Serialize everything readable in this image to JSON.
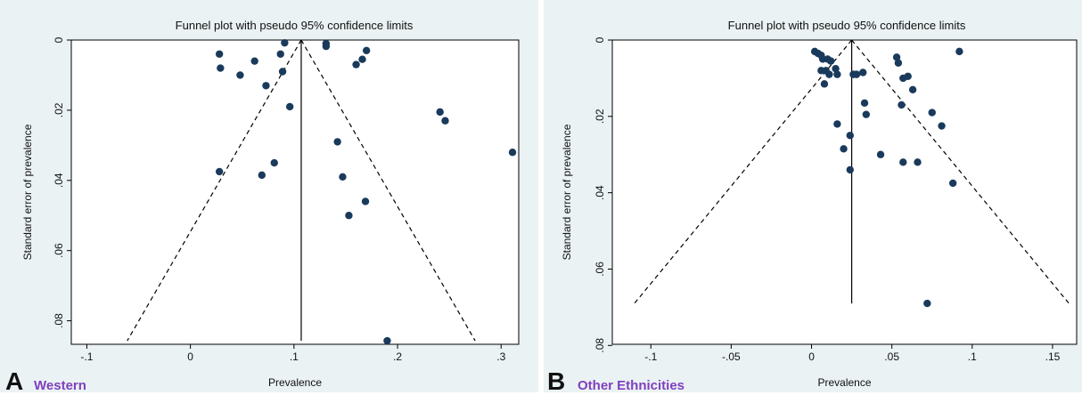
{
  "colors": {
    "outer_bg": "#eaf2f3",
    "plot_bg": "#ffffff",
    "point": "#1a3a5c",
    "line": "#000000",
    "subtitle": "#7f3fbf"
  },
  "chart_data": [
    {
      "type": "scatter",
      "panel_letter": "A",
      "subtitle": "Western",
      "title": "Funnel plot with pseudo 95% confidence limits",
      "xlabel": "Prevalence",
      "ylabel": "Standard error of prevalence",
      "xlim": [
        -0.115,
        0.317
      ],
      "ylim": [
        0,
        0.0867
      ],
      "y_reversed": true,
      "xticks": [
        -0.1,
        0,
        0.1,
        0.2,
        0.3
      ],
      "xtick_labels": [
        "-.1",
        "0",
        ".1",
        ".2",
        ".3"
      ],
      "yticks": [
        0,
        0.02,
        0.04,
        0.06,
        0.08
      ],
      "ytick_labels": [
        "0",
        ".02",
        ".04",
        ".06",
        ".08"
      ],
      "pooled_estimate": 0.107,
      "funnel_se_max": 0.0857,
      "points": [
        {
          "x": 0.028,
          "y": 0.004
        },
        {
          "x": 0.029,
          "y": 0.008
        },
        {
          "x": 0.048,
          "y": 0.01
        },
        {
          "x": 0.062,
          "y": 0.006
        },
        {
          "x": 0.073,
          "y": 0.013
        },
        {
          "x": 0.087,
          "y": 0.004
        },
        {
          "x": 0.091,
          "y": 0.0008
        },
        {
          "x": 0.089,
          "y": 0.009
        },
        {
          "x": 0.096,
          "y": 0.019
        },
        {
          "x": 0.131,
          "y": 0.001
        },
        {
          "x": 0.131,
          "y": 0.0018
        },
        {
          "x": 0.17,
          "y": 0.003
        },
        {
          "x": 0.166,
          "y": 0.0055
        },
        {
          "x": 0.16,
          "y": 0.007
        },
        {
          "x": 0.241,
          "y": 0.0205
        },
        {
          "x": 0.246,
          "y": 0.023
        },
        {
          "x": 0.311,
          "y": 0.032
        },
        {
          "x": 0.142,
          "y": 0.029
        },
        {
          "x": 0.147,
          "y": 0.039
        },
        {
          "x": 0.169,
          "y": 0.046
        },
        {
          "x": 0.153,
          "y": 0.05
        },
        {
          "x": 0.081,
          "y": 0.035
        },
        {
          "x": 0.069,
          "y": 0.0385
        },
        {
          "x": 0.028,
          "y": 0.0375
        },
        {
          "x": 0.19,
          "y": 0.0857
        }
      ]
    },
    {
      "type": "scatter",
      "panel_letter": "B",
      "subtitle": "Other Ethnicities",
      "title": "Funnel plot with pseudo 95% confidence limits",
      "xlabel": "Prevalence",
      "ylabel": "Standard error of prevalence",
      "xlim": [
        -0.124,
        0.165
      ],
      "ylim": [
        0,
        0.0797
      ],
      "y_reversed": true,
      "xticks": [
        -0.1,
        -0.05,
        0,
        0.05,
        0.1,
        0.15
      ],
      "xtick_labels": [
        "-.1",
        "-.05",
        "0",
        ".05",
        ".1",
        ".15"
      ],
      "yticks": [
        0,
        0.02,
        0.04,
        0.06,
        0.08
      ],
      "ytick_labels": [
        "0",
        ".02",
        ".04",
        ".06",
        ".08"
      ],
      "pooled_estimate": 0.025,
      "funnel_se_max": 0.069,
      "points": [
        {
          "x": 0.002,
          "y": 0.003
        },
        {
          "x": 0.004,
          "y": 0.0035
        },
        {
          "x": 0.006,
          "y": 0.004
        },
        {
          "x": 0.007,
          "y": 0.005
        },
        {
          "x": 0.01,
          "y": 0.005
        },
        {
          "x": 0.012,
          "y": 0.0055
        },
        {
          "x": 0.015,
          "y": 0.0075
        },
        {
          "x": 0.006,
          "y": 0.008
        },
        {
          "x": 0.009,
          "y": 0.008
        },
        {
          "x": 0.011,
          "y": 0.009
        },
        {
          "x": 0.016,
          "y": 0.009
        },
        {
          "x": 0.008,
          "y": 0.0115
        },
        {
          "x": 0.026,
          "y": 0.009
        },
        {
          "x": 0.028,
          "y": 0.009
        },
        {
          "x": 0.032,
          "y": 0.0085
        },
        {
          "x": 0.053,
          "y": 0.0045
        },
        {
          "x": 0.054,
          "y": 0.006
        },
        {
          "x": 0.057,
          "y": 0.01
        },
        {
          "x": 0.06,
          "y": 0.0095
        },
        {
          "x": 0.063,
          "y": 0.013
        },
        {
          "x": 0.092,
          "y": 0.003
        },
        {
          "x": 0.033,
          "y": 0.0165
        },
        {
          "x": 0.056,
          "y": 0.017
        },
        {
          "x": 0.034,
          "y": 0.0195
        },
        {
          "x": 0.075,
          "y": 0.019
        },
        {
          "x": 0.081,
          "y": 0.0225
        },
        {
          "x": 0.016,
          "y": 0.022
        },
        {
          "x": 0.024,
          "y": 0.025
        },
        {
          "x": 0.02,
          "y": 0.0285
        },
        {
          "x": 0.043,
          "y": 0.03
        },
        {
          "x": 0.057,
          "y": 0.032
        },
        {
          "x": 0.066,
          "y": 0.032
        },
        {
          "x": 0.024,
          "y": 0.034
        },
        {
          "x": 0.088,
          "y": 0.0375
        },
        {
          "x": 0.072,
          "y": 0.069
        }
      ]
    }
  ]
}
